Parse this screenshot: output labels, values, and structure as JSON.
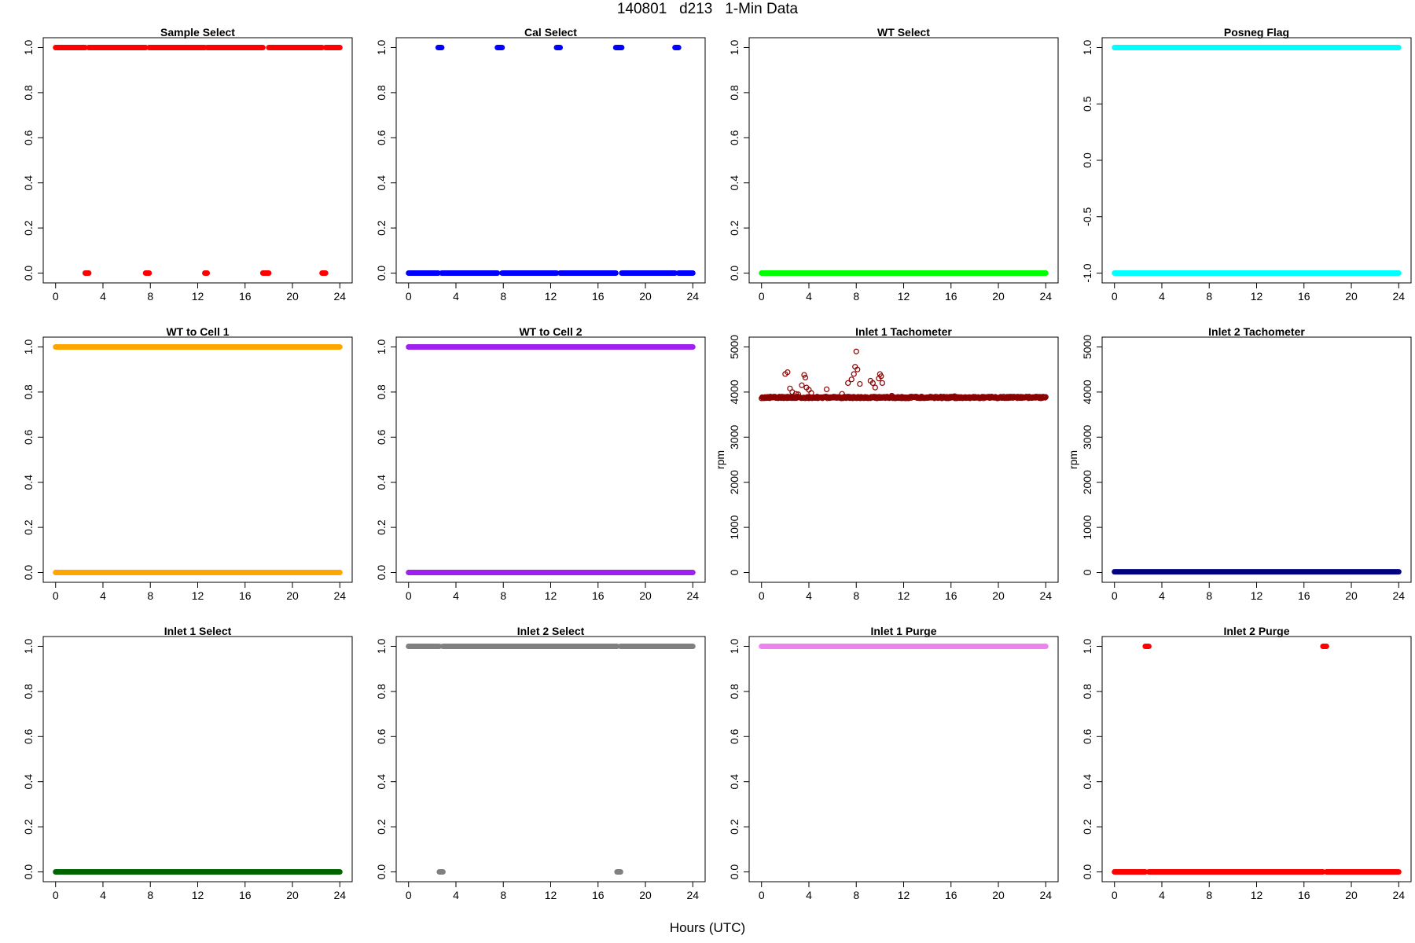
{
  "page": {
    "title": "140801   d213   1-Min Data",
    "xlabel": "Hours (UTC)"
  },
  "chart_data": [
    {
      "type": "scatter",
      "title": "Sample Select",
      "xlabel": "",
      "ylabel": "",
      "xlim": [
        0,
        24
      ],
      "ylim": [
        0,
        1
      ],
      "x_ticks": [
        0,
        4,
        8,
        12,
        16,
        20,
        24
      ],
      "y_ticks": [
        0.0,
        0.2,
        0.4,
        0.6,
        0.8,
        1.0
      ],
      "color": "#ff0000",
      "series": [
        {
          "y": 1.0,
          "x_ranges": [
            [
              0.0,
              2.5
            ],
            [
              2.8,
              7.6
            ],
            [
              7.9,
              12.6
            ],
            [
              12.8,
              17.5
            ],
            [
              18.0,
              22.5
            ],
            [
              22.8,
              24.0
            ]
          ]
        },
        {
          "y": 0.0,
          "x_ranges": [
            [
              2.5,
              2.8
            ],
            [
              7.6,
              7.9
            ],
            [
              12.6,
              12.8
            ],
            [
              17.5,
              18.0
            ],
            [
              22.5,
              22.8
            ]
          ]
        }
      ]
    },
    {
      "type": "scatter",
      "title": "Cal Select",
      "xlabel": "",
      "ylabel": "",
      "xlim": [
        0,
        24
      ],
      "ylim": [
        0,
        1
      ],
      "x_ticks": [
        0,
        4,
        8,
        12,
        16,
        20,
        24
      ],
      "y_ticks": [
        0.0,
        0.2,
        0.4,
        0.6,
        0.8,
        1.0
      ],
      "color": "#0000ff",
      "series": [
        {
          "y": 1.0,
          "x_ranges": [
            [
              2.5,
              2.8
            ],
            [
              7.5,
              7.9
            ],
            [
              12.5,
              12.8
            ],
            [
              17.5,
              18.0
            ],
            [
              22.5,
              22.8
            ]
          ]
        },
        {
          "y": 0.0,
          "x_ranges": [
            [
              0.0,
              2.5
            ],
            [
              2.8,
              7.5
            ],
            [
              7.9,
              12.5
            ],
            [
              12.8,
              17.5
            ],
            [
              18.0,
              22.5
            ],
            [
              22.8,
              24.0
            ]
          ]
        }
      ]
    },
    {
      "type": "scatter",
      "title": "WT Select",
      "xlabel": "",
      "ylabel": "",
      "xlim": [
        0,
        24
      ],
      "ylim": [
        0,
        1
      ],
      "x_ticks": [
        0,
        4,
        8,
        12,
        16,
        20,
        24
      ],
      "y_ticks": [
        0.0,
        0.2,
        0.4,
        0.6,
        0.8,
        1.0
      ],
      "color": "#00ff00",
      "series": [
        {
          "y": 0.0,
          "x_ranges": [
            [
              0.0,
              24.0
            ]
          ]
        }
      ]
    },
    {
      "type": "scatter",
      "title": "Posneg Flag",
      "xlabel": "",
      "ylabel": "",
      "xlim": [
        0,
        24
      ],
      "ylim": [
        -1,
        1
      ],
      "x_ticks": [
        0,
        4,
        8,
        12,
        16,
        20,
        24
      ],
      "y_ticks": [
        -1.0,
        -0.5,
        0.0,
        0.5,
        1.0
      ],
      "color": "#00ffff",
      "series": [
        {
          "y": 1.0,
          "x_ranges": [
            [
              0.0,
              24.0
            ]
          ]
        },
        {
          "y": -1.0,
          "x_ranges": [
            [
              0.0,
              24.0
            ]
          ]
        }
      ]
    },
    {
      "type": "scatter",
      "title": "WT to Cell 1",
      "xlabel": "",
      "ylabel": "",
      "xlim": [
        0,
        24
      ],
      "ylim": [
        0,
        1
      ],
      "x_ticks": [
        0,
        4,
        8,
        12,
        16,
        20,
        24
      ],
      "y_ticks": [
        0.0,
        0.2,
        0.4,
        0.6,
        0.8,
        1.0
      ],
      "color": "#ffa500",
      "series": [
        {
          "y": 1.0,
          "x_ranges": [
            [
              0.0,
              24.0
            ]
          ]
        },
        {
          "y": 0.0,
          "x_ranges": [
            [
              0.0,
              24.0
            ]
          ]
        }
      ]
    },
    {
      "type": "scatter",
      "title": "WT to Cell 2",
      "xlabel": "",
      "ylabel": "",
      "xlim": [
        0,
        24
      ],
      "ylim": [
        0,
        1
      ],
      "x_ticks": [
        0,
        4,
        8,
        12,
        16,
        20,
        24
      ],
      "y_ticks": [
        0.0,
        0.2,
        0.4,
        0.6,
        0.8,
        1.0
      ],
      "color": "#a020f0",
      "series": [
        {
          "y": 1.0,
          "x_ranges": [
            [
              0.0,
              24.0
            ]
          ]
        },
        {
          "y": 0.0,
          "x_ranges": [
            [
              0.0,
              24.0
            ]
          ]
        }
      ]
    },
    {
      "type": "scatter",
      "title": "Inlet 1 Tachometer",
      "xlabel": "",
      "ylabel": "rpm",
      "xlim": [
        0,
        24
      ],
      "ylim": [
        0,
        5000
      ],
      "x_ticks": [
        0,
        4,
        8,
        12,
        16,
        20,
        24
      ],
      "y_ticks": [
        0,
        1000,
        2000,
        3000,
        4000,
        5000
      ],
      "color": "#8b0000",
      "baseline": 3880,
      "noise": 20,
      "spikes": [
        {
          "x": 2.0,
          "y": 4400
        },
        {
          "x": 2.2,
          "y": 4440
        },
        {
          "x": 2.4,
          "y": 4080
        },
        {
          "x": 2.6,
          "y": 4000
        },
        {
          "x": 3.4,
          "y": 4150
        },
        {
          "x": 3.6,
          "y": 4380
        },
        {
          "x": 3.7,
          "y": 4320
        },
        {
          "x": 3.8,
          "y": 4100
        },
        {
          "x": 4.0,
          "y": 4050
        },
        {
          "x": 4.2,
          "y": 3980
        },
        {
          "x": 5.5,
          "y": 4060
        },
        {
          "x": 7.3,
          "y": 4200
        },
        {
          "x": 7.6,
          "y": 4280
        },
        {
          "x": 7.8,
          "y": 4400
        },
        {
          "x": 7.9,
          "y": 4560
        },
        {
          "x": 8.0,
          "y": 4900
        },
        {
          "x": 8.1,
          "y": 4500
        },
        {
          "x": 8.3,
          "y": 4180
        },
        {
          "x": 9.2,
          "y": 4250
        },
        {
          "x": 9.4,
          "y": 4200
        },
        {
          "x": 9.9,
          "y": 4300
        },
        {
          "x": 10.0,
          "y": 4400
        },
        {
          "x": 10.1,
          "y": 4350
        },
        {
          "x": 10.2,
          "y": 4200
        },
        {
          "x": 6.8,
          "y": 3960
        },
        {
          "x": 11.0,
          "y": 3920
        },
        {
          "x": 13.5,
          "y": 3900
        },
        {
          "x": 16.3,
          "y": 3910
        },
        {
          "x": 2.9,
          "y": 3960
        },
        {
          "x": 3.1,
          "y": 3950
        },
        {
          "x": 9.6,
          "y": 4100
        }
      ]
    },
    {
      "type": "scatter",
      "title": "Inlet 2 Tachometer",
      "xlabel": "",
      "ylabel": "rpm",
      "xlim": [
        0,
        24
      ],
      "ylim": [
        0,
        5000
      ],
      "x_ticks": [
        0,
        4,
        8,
        12,
        16,
        20,
        24
      ],
      "y_ticks": [
        0,
        1000,
        2000,
        3000,
        4000,
        5000
      ],
      "color": "#000080",
      "baseline": 15,
      "noise": 8,
      "series": [
        {
          "y": 15,
          "x_ranges": [
            [
              0.0,
              24.0
            ]
          ]
        }
      ]
    },
    {
      "type": "scatter",
      "title": "Inlet 1 Select",
      "xlabel": "",
      "ylabel": "",
      "xlim": [
        0,
        24
      ],
      "ylim": [
        0,
        1
      ],
      "x_ticks": [
        0,
        4,
        8,
        12,
        16,
        20,
        24
      ],
      "y_ticks": [
        0.0,
        0.2,
        0.4,
        0.6,
        0.8,
        1.0
      ],
      "color": "#006400",
      "series": [
        {
          "y": 0.0,
          "x_ranges": [
            [
              0.0,
              24.0
            ]
          ]
        }
      ]
    },
    {
      "type": "scatter",
      "title": "Inlet 2 Select",
      "xlabel": "",
      "ylabel": "",
      "xlim": [
        0,
        24
      ],
      "ylim": [
        0,
        1
      ],
      "x_ticks": [
        0,
        4,
        8,
        12,
        16,
        20,
        24
      ],
      "y_ticks": [
        0.0,
        0.2,
        0.4,
        0.6,
        0.8,
        1.0
      ],
      "color": "#808080",
      "series": [
        {
          "y": 1.0,
          "x_ranges": [
            [
              0.0,
              2.6
            ],
            [
              2.9,
              17.6
            ],
            [
              17.9,
              24.0
            ]
          ]
        },
        {
          "y": 0.0,
          "x_ranges": [
            [
              2.6,
              2.9
            ],
            [
              17.6,
              17.9
            ]
          ]
        }
      ]
    },
    {
      "type": "scatter",
      "title": "Inlet 1 Purge",
      "xlabel": "",
      "ylabel": "",
      "xlim": [
        0,
        24
      ],
      "ylim": [
        0,
        1
      ],
      "x_ticks": [
        0,
        4,
        8,
        12,
        16,
        20,
        24
      ],
      "y_ticks": [
        0.0,
        0.2,
        0.4,
        0.6,
        0.8,
        1.0
      ],
      "color": "#ee82ee",
      "series": [
        {
          "y": 1.0,
          "x_ranges": [
            [
              0.0,
              24.0
            ]
          ]
        }
      ]
    },
    {
      "type": "scatter",
      "title": "Inlet 2 Purge",
      "xlabel": "",
      "ylabel": "",
      "xlim": [
        0,
        24
      ],
      "ylim": [
        0,
        1
      ],
      "x_ticks": [
        0,
        4,
        8,
        12,
        16,
        20,
        24
      ],
      "y_ticks": [
        0.0,
        0.2,
        0.4,
        0.6,
        0.8,
        1.0
      ],
      "color": "#ff0000",
      "series": [
        {
          "y": 1.0,
          "x_ranges": [
            [
              2.6,
              2.9
            ],
            [
              17.6,
              17.9
            ]
          ]
        },
        {
          "y": 0.0,
          "x_ranges": [
            [
              0.0,
              2.6
            ],
            [
              2.9,
              17.6
            ],
            [
              17.9,
              24.0
            ]
          ]
        }
      ]
    }
  ]
}
